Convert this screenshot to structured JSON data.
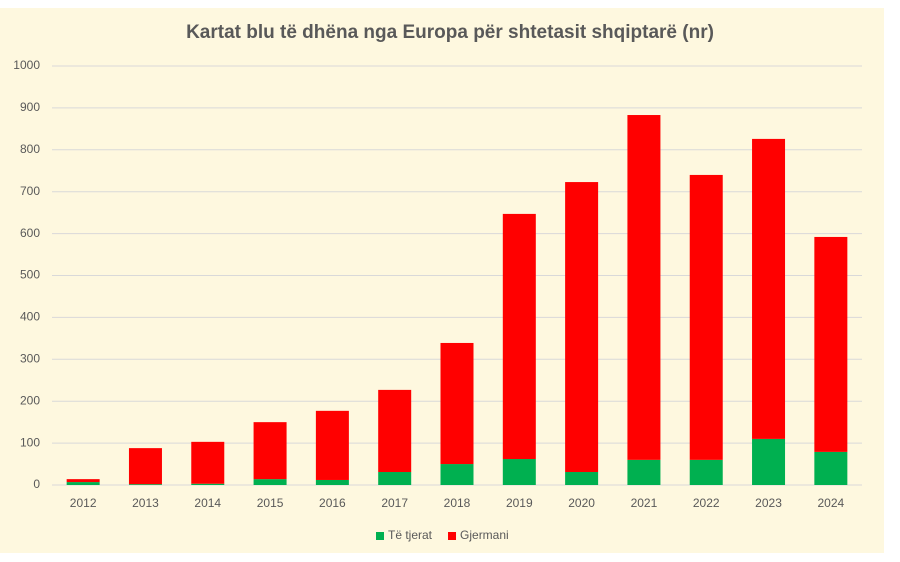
{
  "chart_data": {
    "type": "stacked_bar",
    "title": "Kartat blu të dhëna nga Europa për shtetasit shqiptarë (nr)",
    "categories": [
      "2012",
      "2013",
      "2014",
      "2015",
      "2016",
      "2017",
      "2018",
      "2019",
      "2020",
      "2021",
      "2022",
      "2023",
      "2024"
    ],
    "series": [
      {
        "name": "Të tjerat",
        "color": "#00b050",
        "values": [
          7,
          2,
          3,
          14,
          12,
          31,
          50,
          62,
          31,
          60,
          60,
          110,
          79
        ]
      },
      {
        "name": "Gjermani",
        "color": "#ff0000",
        "values": [
          7,
          86,
          100,
          136,
          165,
          196,
          289,
          585,
          692,
          823,
          680,
          716,
          513
        ]
      }
    ],
    "ylim": [
      0,
      1000
    ],
    "yticks": [
      0,
      100,
      200,
      300,
      400,
      500,
      600,
      700,
      800,
      900,
      1000
    ],
    "grid": true,
    "legend": "bottom"
  }
}
